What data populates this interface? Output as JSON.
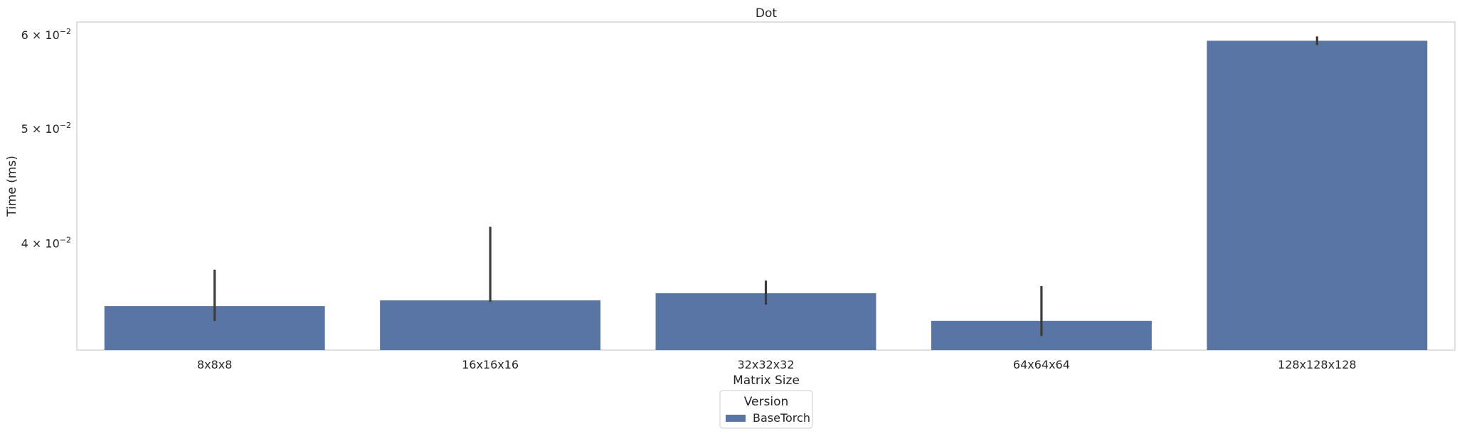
{
  "chart_data": {
    "type": "bar",
    "title": "Dot",
    "xlabel": "Matrix Size",
    "ylabel": "Time (ms)",
    "y_scale": "log",
    "ylim": [
      0.0325,
      0.0615
    ],
    "categories": [
      "8x8x8",
      "16x16x16",
      "32x32x32",
      "64x64x64",
      "128x128x128"
    ],
    "series": [
      {
        "name": "BaseTorch",
        "color": "#5975a4",
        "values": [
          0.0354,
          0.0358,
          0.0363,
          0.0344,
          0.0593
        ],
        "error_low": [
          0.0344,
          0.0357,
          0.0355,
          0.0334,
          0.0588
        ],
        "error_high": [
          0.038,
          0.0413,
          0.0372,
          0.0368,
          0.0598
        ]
      }
    ],
    "y_ticks": [
      {
        "value": 0.04,
        "label": "4 × 10",
        "exp": "−2"
      },
      {
        "value": 0.05,
        "label": "5 × 10",
        "exp": "−2"
      },
      {
        "value": 0.06,
        "label": "6 × 10",
        "exp": "−2"
      }
    ],
    "legend": {
      "title": "Version",
      "placement": "below-center"
    },
    "grid": false
  }
}
